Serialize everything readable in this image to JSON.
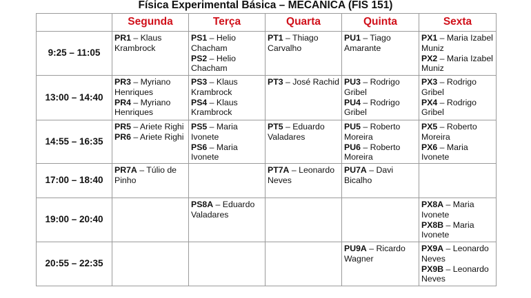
{
  "title": "Física Experimental Básica – MECANICA (FIS 151)",
  "header_color": "#d0101a",
  "days": [
    "Segunda",
    "Terça",
    "Quarta",
    "Quinta",
    "Sexta"
  ],
  "rows": [
    {
      "time": "9:25 – 11:05",
      "cells": [
        [
          {
            "code": "PR1",
            "name": " – Klaus Krambrock"
          }
        ],
        [
          {
            "code": "PS1",
            "name": " – Helio Chacham"
          },
          {
            "code": "PS2",
            "name": " – Helio Chacham"
          }
        ],
        [
          {
            "code": "PT1",
            "name": " – Thiago Carvalho"
          }
        ],
        [
          {
            "code": "PU1",
            "name": " – Tiago Amarante"
          }
        ],
        [
          {
            "code": "PX1",
            "name": " – Maria Izabel Muniz"
          },
          {
            "code": "PX2",
            "name": " – Maria Izabel Muniz"
          }
        ]
      ]
    },
    {
      "time": "13:00 – 14:40",
      "cells": [
        [
          {
            "code": "PR3",
            "name": " – Myriano Henriques"
          },
          {
            "code": "PR4",
            "name": " – Myriano Henriques"
          }
        ],
        [
          {
            "code": "PS3",
            "name": " – Klaus Krambrock"
          },
          {
            "code": "PS4",
            "name": " – Klaus Krambrock"
          }
        ],
        [
          {
            "code": "PT3",
            "name": " – José Rachid"
          }
        ],
        [
          {
            "code": "PU3",
            "name": " – Rodrigo Gribel"
          },
          {
            "code": "PU4",
            "name": " – Rodrigo Gribel"
          }
        ],
        [
          {
            "code": "PX3",
            "name": " – Rodrigo Gribel"
          },
          {
            "code": "PX4",
            "name": " – Rodrigo Gribel"
          }
        ]
      ]
    },
    {
      "time": "14:55 – 16:35",
      "cells": [
        [
          {
            "code": "PR5",
            "name": " – Ariete Righi"
          },
          {
            "code": "PR6",
            "name": " – Ariete Righi"
          }
        ],
        [
          {
            "code": "PS5",
            "name": " – Maria Ivonete"
          },
          {
            "code": "PS6",
            "name": " – Maria Ivonete"
          }
        ],
        [
          {
            "code": "PT5",
            "name": " – Eduardo Valadares"
          }
        ],
        [
          {
            "code": "PU5",
            "name": " – Roberto Moreira"
          },
          {
            "code": "PU6",
            "name": " – Roberto Moreira"
          }
        ],
        [
          {
            "code": "PX5",
            "name": " – Roberto Moreira"
          },
          {
            "code": "PX6",
            "name": " – Maria Ivonete"
          }
        ]
      ]
    },
    {
      "time": "17:00 – 18:40",
      "cells": [
        [
          {
            "code": "PR7A",
            "name": " – Túlio de Pinho"
          }
        ],
        [],
        [
          {
            "code": "PT7A",
            "name": " – Leonardo Neves"
          }
        ],
        [
          {
            "code": "PU7A",
            "name": " – Davi Bicalho"
          }
        ],
        []
      ]
    },
    {
      "time": "19:00 – 20:40",
      "cells": [
        [],
        [
          {
            "code": "PS8A",
            "name": " – Eduardo Valadares"
          }
        ],
        [],
        [],
        [
          {
            "code": "PX8A",
            "name": " – Maria Ivonete"
          },
          {
            "code": "PX8B",
            "name": " – Maria Ivonete"
          }
        ]
      ]
    },
    {
      "time": "20:55 – 22:35",
      "cells": [
        [],
        [],
        [],
        [
          {
            "code": "PU9A",
            "name": " – Ricardo Wagner"
          }
        ],
        [
          {
            "code": "PX9A",
            "name": " – Leonardo Neves"
          },
          {
            "code": "PX9B",
            "name": " – Leonardo Neves"
          }
        ]
      ]
    }
  ]
}
